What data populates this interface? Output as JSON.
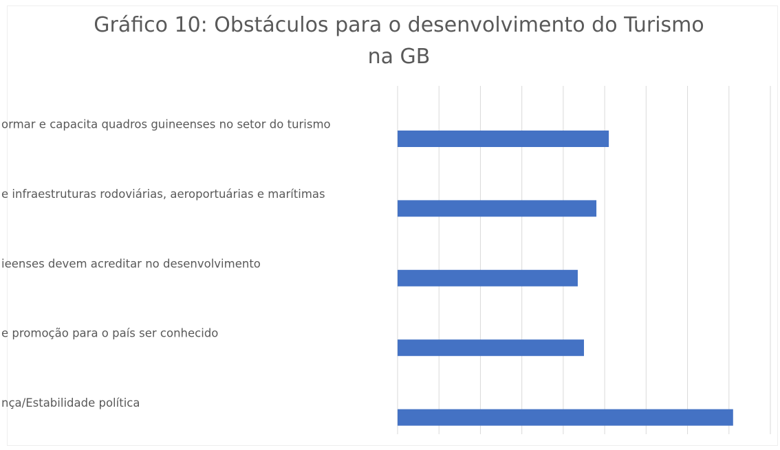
{
  "chart_data": {
    "type": "barh",
    "title": "Gráfico 10: Obstáculos para o desenvolvimento do Turismo na GB",
    "categories": [
      "ormar e capacita quadros guineenses no setor do turismo",
      "e infraestruturas rodoviárias, aeroportuárias e marítimas",
      "ieenses devem acreditar no desenvolvimento",
      "e promoção para o país ser conhecido",
      "nça/Estabilidade política"
    ],
    "values": [
      5.1,
      4.8,
      4.35,
      4.5,
      8.1
    ],
    "color": "#4472c4",
    "xlim": [
      0,
      9
    ],
    "xticks": [
      0,
      1,
      2,
      3,
      4,
      5,
      6,
      7,
      8,
      9
    ],
    "show_tick_labels": false,
    "grid": true
  }
}
